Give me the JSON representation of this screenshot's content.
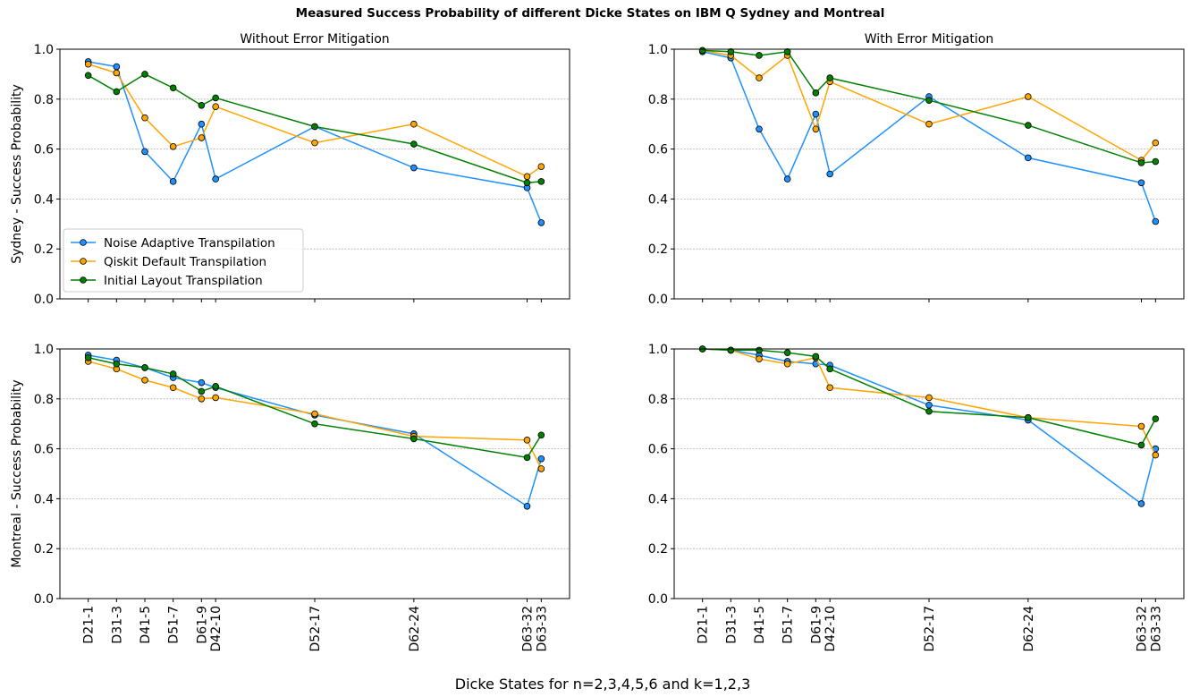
{
  "figure": {
    "title": "Measured Success Probability of different Dicke States on IBM Q Sydney and Montreal",
    "xlabel": "Dicke States for n=2,3,4,5,6 and k=1,2,3"
  },
  "chart_data": [
    {
      "type": "line",
      "title": "Without Error Mitigation",
      "ylabel": "Sydney - Success Probability",
      "xlabel": "",
      "ylim": [
        0,
        1
      ],
      "yticks": [
        "0.0",
        "0.2",
        "0.4",
        "0.6",
        "0.8",
        "1.0"
      ],
      "grid": "horizontal",
      "legend": "lower-left",
      "x": [
        1,
        2,
        3,
        4,
        5,
        5.5,
        9,
        12.5,
        16.5,
        17
      ],
      "categories": [
        "D21-1",
        "D31-3",
        "D41-5",
        "D51-7",
        "D61-9",
        "D42-10",
        "D52-17",
        "D62-24",
        "D63-32",
        "D63-33"
      ],
      "series": [
        {
          "name": "Noise Adaptive Transpilation",
          "color": "#1e90ff",
          "values": [
            0.95,
            0.93,
            0.59,
            0.47,
            0.7,
            0.48,
            0.69,
            0.525,
            0.445,
            0.305
          ]
        },
        {
          "name": "Qiskit Default Transpilation",
          "color": "#ffa500",
          "values": [
            0.94,
            0.905,
            0.725,
            0.61,
            0.645,
            0.77,
            0.625,
            0.7,
            0.49,
            0.53
          ]
        },
        {
          "name": "Initial Layout Transpilation",
          "color": "#008000",
          "values": [
            0.895,
            0.83,
            0.9,
            0.845,
            0.775,
            0.805,
            0.69,
            0.62,
            0.465,
            0.47
          ]
        }
      ]
    },
    {
      "type": "line",
      "title": "With Error Mitigation",
      "ylabel": "",
      "xlabel": "",
      "ylim": [
        0,
        1
      ],
      "yticks": [
        "0.0",
        "0.2",
        "0.4",
        "0.6",
        "0.8",
        "1.0"
      ],
      "grid": "horizontal",
      "x": [
        1,
        2,
        3,
        4,
        5,
        5.5,
        9,
        12.5,
        16.5,
        17
      ],
      "categories": [
        "D21-1",
        "D31-3",
        "D41-5",
        "D51-7",
        "D61-9",
        "D42-10",
        "D52-17",
        "D62-24",
        "D63-32",
        "D63-33"
      ],
      "series": [
        {
          "name": "Noise Adaptive Transpilation",
          "color": "#1e90ff",
          "values": [
            0.99,
            0.965,
            0.68,
            0.48,
            0.74,
            0.5,
            0.81,
            0.565,
            0.465,
            0.31
          ]
        },
        {
          "name": "Qiskit Default Transpilation",
          "color": "#ffa500",
          "values": [
            0.995,
            0.975,
            0.885,
            0.975,
            0.68,
            0.87,
            0.7,
            0.81,
            0.555,
            0.625
          ]
        },
        {
          "name": "Initial Layout Transpilation",
          "color": "#008000",
          "values": [
            0.995,
            0.99,
            0.975,
            0.99,
            0.825,
            0.885,
            0.795,
            0.695,
            0.545,
            0.55
          ]
        }
      ]
    },
    {
      "type": "line",
      "title": "",
      "ylabel": "Montreal - Success Probability",
      "xlabel": "",
      "ylim": [
        0,
        1
      ],
      "yticks": [
        "0.0",
        "0.2",
        "0.4",
        "0.6",
        "0.8",
        "1.0"
      ],
      "grid": "horizontal",
      "x": [
        1,
        2,
        3,
        4,
        5,
        5.5,
        9,
        12.5,
        16.5,
        17
      ],
      "categories": [
        "D21-1",
        "D31-3",
        "D41-5",
        "D51-7",
        "D61-9",
        "D42-10",
        "D52-17",
        "D62-24",
        "D63-32",
        "D63-33"
      ],
      "series": [
        {
          "name": "Noise Adaptive Transpilation",
          "color": "#1e90ff",
          "values": [
            0.975,
            0.955,
            0.925,
            0.885,
            0.865,
            0.845,
            0.735,
            0.66,
            0.37,
            0.56
          ]
        },
        {
          "name": "Qiskit Default Transpilation",
          "color": "#ffa500",
          "values": [
            0.95,
            0.92,
            0.875,
            0.845,
            0.8,
            0.805,
            0.74,
            0.65,
            0.635,
            0.52
          ]
        },
        {
          "name": "Initial Layout Transpilation",
          "color": "#008000",
          "values": [
            0.965,
            0.94,
            0.925,
            0.9,
            0.83,
            0.85,
            0.7,
            0.64,
            0.565,
            0.655
          ]
        }
      ]
    },
    {
      "type": "line",
      "title": "",
      "ylabel": "",
      "xlabel": "",
      "ylim": [
        0,
        1
      ],
      "yticks": [
        "0.0",
        "0.2",
        "0.4",
        "0.6",
        "0.8",
        "1.0"
      ],
      "grid": "horizontal",
      "x": [
        1,
        2,
        3,
        4,
        5,
        5.5,
        9,
        12.5,
        16.5,
        17
      ],
      "categories": [
        "D21-1",
        "D31-3",
        "D41-5",
        "D51-7",
        "D61-9",
        "D42-10",
        "D52-17",
        "D62-24",
        "D63-32",
        "D63-33"
      ],
      "series": [
        {
          "name": "Noise Adaptive Transpilation",
          "color": "#1e90ff",
          "values": [
            1.0,
            0.995,
            0.975,
            0.95,
            0.94,
            0.935,
            0.775,
            0.715,
            0.38,
            0.6
          ]
        },
        {
          "name": "Qiskit Default Transpilation",
          "color": "#ffa500",
          "values": [
            1.0,
            0.995,
            0.96,
            0.94,
            0.965,
            0.845,
            0.805,
            0.725,
            0.69,
            0.575
          ]
        },
        {
          "name": "Initial Layout Transpilation",
          "color": "#008000",
          "values": [
            1.0,
            0.995,
            0.995,
            0.985,
            0.97,
            0.92,
            0.75,
            0.725,
            0.615,
            0.72
          ]
        }
      ]
    }
  ]
}
